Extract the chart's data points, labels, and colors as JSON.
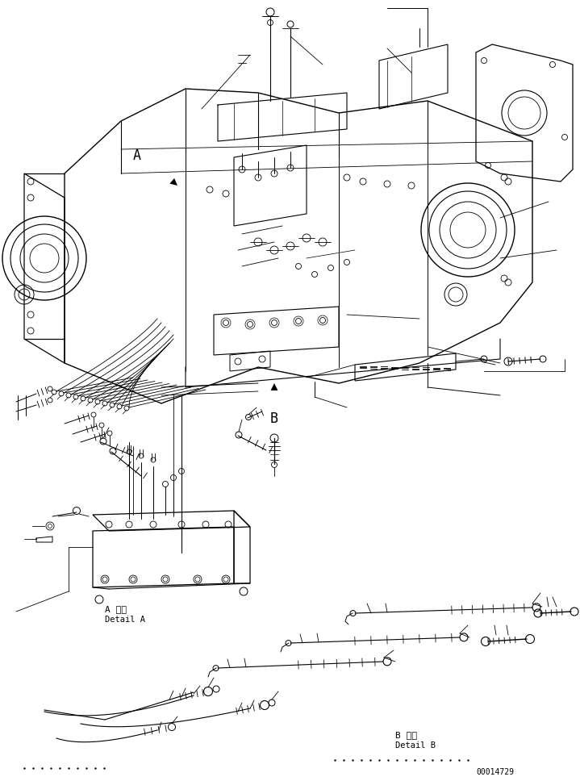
{
  "background_color": "#ffffff",
  "fig_width": 7.19,
  "fig_height": 9.68,
  "dpi": 100,
  "part_number": "00014729",
  "label_A": "A",
  "label_B": "B",
  "detail_A_jp": "A 詳細",
  "detail_A_en": "Detail A",
  "detail_B_jp": "B 詳細",
  "detail_B_en": "Detail B",
  "lc": "#000000",
  "tc": "#000000"
}
